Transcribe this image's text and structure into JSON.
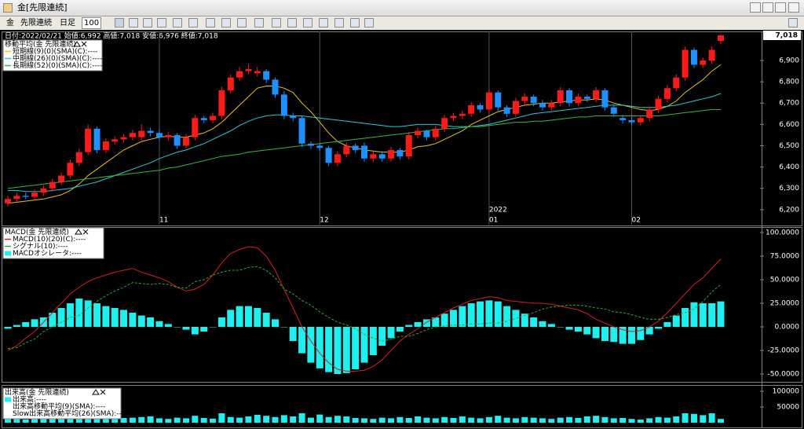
{
  "window": {
    "title": "金[先限連続]",
    "toolbar": {
      "symbol": "金",
      "contract": "先限連続",
      "period": "日足",
      "count": "100"
    }
  },
  "chart_data": [
    {
      "type": "candlestick",
      "info": "日付:2022/02/21 始値:6,992 高値:7,018 安値:6,976 終値:7,018",
      "legend_title": "移動平均(金 先限連続)",
      "categories": [
        null,
        null,
        null,
        null,
        null,
        null,
        null,
        null,
        null,
        null,
        null,
        null,
        null,
        null,
        null,
        null,
        null,
        "11",
        null,
        null,
        null,
        null,
        null,
        null,
        null,
        null,
        null,
        null,
        null,
        null,
        null,
        null,
        null,
        null,
        null,
        "12",
        null,
        null,
        null,
        null,
        null,
        null,
        null,
        null,
        null,
        null,
        null,
        null,
        null,
        null,
        null,
        null,
        null,
        null,
        "01",
        null,
        null,
        null,
        null,
        null,
        null,
        null,
        null,
        null,
        null,
        null,
        null,
        null,
        null,
        null,
        "02",
        null,
        null,
        null,
        null,
        null,
        null,
        null,
        null,
        null,
        null
      ],
      "year_label": "2022",
      "up_color": "#ff1a1a",
      "down_color": "#1e90ff",
      "open": [
        6230,
        6250,
        6265,
        6260,
        6280,
        6300,
        6330,
        6360,
        6420,
        6470,
        6580,
        6480,
        6520,
        6530,
        6540,
        6540,
        6570,
        6560,
        6540,
        6550,
        6500,
        6540,
        6630,
        6620,
        6640,
        6760,
        6820,
        6850,
        6840,
        6850,
        6810,
        6740,
        6640,
        6630,
        6510,
        6500,
        6490,
        6420,
        6460,
        6500,
        6500,
        6440,
        6460,
        6440,
        6480,
        6450,
        6550,
        6570,
        6540,
        6580,
        6630,
        6640,
        6650,
        6690,
        6670,
        6750,
        6680,
        6650,
        6710,
        6730,
        6700,
        6680,
        6700,
        6760,
        6700,
        6730,
        6720,
        6760,
        6680,
        6630,
        6620,
        6610,
        6630,
        6670,
        6720,
        6770,
        6820,
        6950,
        6880,
        6900,
        6992
      ],
      "high": [
        6265,
        6280,
        6280,
        6295,
        6315,
        6345,
        6375,
        6435,
        6485,
        6600,
        6590,
        6535,
        6545,
        6555,
        6575,
        6600,
        6585,
        6575,
        6565,
        6560,
        6555,
        6645,
        6640,
        6655,
        6775,
        6835,
        6870,
        6885,
        6870,
        6860,
        6820,
        6755,
        6655,
        6640,
        6520,
        6510,
        6500,
        6475,
        6515,
        6510,
        6515,
        6475,
        6475,
        6495,
        6490,
        6565,
        6585,
        6575,
        6595,
        6645,
        6655,
        6665,
        6705,
        6700,
        6765,
        6760,
        6690,
        6725,
        6745,
        6740,
        6715,
        6715,
        6775,
        6770,
        6745,
        6740,
        6775,
        6770,
        6690,
        6645,
        6635,
        6645,
        6685,
        6735,
        6785,
        6835,
        6965,
        6960,
        6915,
        6965,
        7018
      ],
      "low": [
        6215,
        6235,
        6250,
        6245,
        6265,
        6285,
        6315,
        6345,
        6405,
        6455,
        6465,
        6465,
        6505,
        6515,
        6525,
        6525,
        6545,
        6525,
        6525,
        6485,
        6485,
        6525,
        6605,
        6605,
        6625,
        6745,
        6805,
        6835,
        6825,
        6795,
        6725,
        6625,
        6615,
        6495,
        6485,
        6475,
        6405,
        6405,
        6445,
        6465,
        6425,
        6425,
        6425,
        6425,
        6435,
        6435,
        6535,
        6525,
        6525,
        6565,
        6615,
        6625,
        6635,
        6655,
        6655,
        6665,
        6635,
        6635,
        6695,
        6685,
        6665,
        6665,
        6685,
        6685,
        6685,
        6705,
        6705,
        6665,
        6635,
        6605,
        6595,
        6595,
        6615,
        6655,
        6705,
        6755,
        6805,
        6865,
        6865,
        6885,
        6976
      ],
      "close": [
        6250,
        6265,
        6260,
        6280,
        6300,
        6330,
        6360,
        6420,
        6470,
        6580,
        6480,
        6520,
        6530,
        6540,
        6560,
        6570,
        6560,
        6540,
        6550,
        6500,
        6540,
        6630,
        6620,
        6640,
        6760,
        6820,
        6850,
        6860,
        6850,
        6810,
        6740,
        6640,
        6630,
        6510,
        6500,
        6490,
        6420,
        6460,
        6500,
        6480,
        6440,
        6460,
        6440,
        6480,
        6450,
        6550,
        6570,
        6540,
        6580,
        6630,
        6640,
        6650,
        6690,
        6670,
        6750,
        6680,
        6650,
        6710,
        6730,
        6700,
        6680,
        6700,
        6760,
        6700,
        6730,
        6720,
        6760,
        6680,
        6650,
        6620,
        6610,
        6630,
        6670,
        6720,
        6770,
        6820,
        6950,
        6880,
        6900,
        6950,
        7018
      ],
      "series": [
        {
          "name": "短期線(9)(0)(SMA)(C):----",
          "color": "#e6c619",
          "values": [
            6230,
            6235,
            6240,
            6245,
            6250,
            6260,
            6270,
            6290,
            6320,
            6360,
            6390,
            6420,
            6450,
            6480,
            6500,
            6520,
            6530,
            6540,
            6545,
            6540,
            6540,
            6550,
            6560,
            6580,
            6610,
            6650,
            6690,
            6730,
            6770,
            6780,
            6780,
            6770,
            6750,
            6700,
            6660,
            6610,
            6560,
            6520,
            6500,
            6490,
            6480,
            6475,
            6470,
            6470,
            6470,
            6480,
            6495,
            6500,
            6510,
            6530,
            6550,
            6570,
            6600,
            6620,
            6640,
            6660,
            6670,
            6680,
            6690,
            6695,
            6700,
            6700,
            6705,
            6710,
            6715,
            6715,
            6720,
            6715,
            6700,
            6690,
            6680,
            6670,
            6665,
            6670,
            6685,
            6710,
            6750,
            6780,
            6810,
            6850,
            6880
          ]
        },
        {
          "name": "中期線(26)(0)(SMA)(C):----",
          "color": "#33c6d6",
          "values": [
            6290,
            6290,
            6285,
            6285,
            6285,
            6290,
            6295,
            6300,
            6310,
            6320,
            6330,
            6345,
            6360,
            6375,
            6390,
            6405,
            6420,
            6440,
            6455,
            6470,
            6480,
            6495,
            6510,
            6530,
            6550,
            6570,
            6595,
            6615,
            6630,
            6640,
            6645,
            6645,
            6640,
            6640,
            6635,
            6630,
            6625,
            6620,
            6615,
            6610,
            6605,
            6600,
            6595,
            6590,
            6590,
            6595,
            6600,
            6600,
            6600,
            6595,
            6590,
            6590,
            6590,
            6595,
            6600,
            6610,
            6620,
            6630,
            6640,
            6650,
            6655,
            6660,
            6665,
            6670,
            6675,
            6680,
            6685,
            6690,
            6690,
            6690,
            6685,
            6680,
            6680,
            6680,
            6685,
            6690,
            6700,
            6710,
            6720,
            6730,
            6745
          ]
        },
        {
          "name": "長期線(52)(0)(SMA)(C):----",
          "color": "#3cb53c",
          "values": [
            6300,
            6305,
            6310,
            6315,
            6320,
            6325,
            6330,
            6335,
            6340,
            6345,
            6350,
            6355,
            6360,
            6365,
            6370,
            6375,
            6380,
            6385,
            6395,
            6400,
            6410,
            6420,
            6430,
            6440,
            6450,
            6455,
            6460,
            6470,
            6475,
            6480,
            6485,
            6490,
            6495,
            6500,
            6505,
            6510,
            6515,
            6520,
            6525,
            6530,
            6535,
            6540,
            6545,
            6550,
            6555,
            6560,
            6565,
            6570,
            6575,
            6580,
            6580,
            6585,
            6590,
            6590,
            6595,
            6600,
            6605,
            6610,
            6610,
            6615,
            6615,
            6620,
            6625,
            6630,
            6635,
            6635,
            6640,
            6640,
            6640,
            6640,
            6640,
            6640,
            6640,
            6640,
            6645,
            6650,
            6655,
            6660,
            6665,
            6670,
            6670
          ]
        }
      ],
      "ylim": [
        6181,
        7029
      ],
      "yticks": [
        {
          "value": 6200,
          "label": "6,200"
        },
        {
          "value": 6300,
          "label": "6,300"
        },
        {
          "value": 6400,
          "label": "6,400"
        },
        {
          "value": 6500,
          "label": "6,500"
        },
        {
          "value": 6600,
          "label": "6,600"
        },
        {
          "value": 6700,
          "label": "6,700"
        },
        {
          "value": 6800,
          "label": "6,800"
        },
        {
          "value": 6900,
          "label": "6,900"
        }
      ],
      "last_label": {
        "value": 7018,
        "label": "7,018"
      }
    },
    {
      "type": "combo",
      "legend_title": "MACD(金 先限連続)",
      "series": [
        {
          "name": "MACD(10)(20)(C):----",
          "type": "line",
          "color": "#d42020",
          "values": [
            -25,
            -20,
            -12,
            -5,
            5,
            15,
            25,
            35,
            42,
            48,
            52,
            55,
            58,
            60,
            62,
            58,
            55,
            52,
            48,
            42,
            38,
            40,
            45,
            55,
            68,
            78,
            82,
            85,
            84,
            75,
            60,
            40,
            20,
            0,
            -15,
            -28,
            -38,
            -45,
            -47,
            -47,
            -46,
            -42,
            -35,
            -25,
            -15,
            -8,
            -2,
            5,
            10,
            15,
            20,
            24,
            28,
            30,
            32,
            31,
            28,
            27,
            26,
            25,
            25,
            24,
            22,
            20,
            18,
            14,
            8,
            4,
            0,
            -3,
            -5,
            -4,
            0,
            6,
            15,
            25,
            35,
            45,
            52,
            62,
            72
          ]
        },
        {
          "name": "シグナル(10):----",
          "type": "line",
          "dash": true,
          "color": "#2fa82f",
          "values": [
            -23,
            -22,
            -17,
            -13,
            -5,
            0,
            5,
            10,
            12,
            20,
            27,
            33,
            38,
            42,
            47,
            46,
            45,
            46,
            45,
            42,
            41,
            48,
            50,
            55,
            58,
            60,
            60,
            63,
            64,
            60,
            52,
            40,
            35,
            28,
            23,
            16,
            10,
            5,
            2,
            -2,
            -8,
            -12,
            -15,
            -13,
            -10,
            -10,
            -7,
            -3,
            0,
            1,
            2,
            2,
            3,
            3,
            4,
            4,
            6,
            9,
            12,
            15,
            19,
            21,
            22,
            23,
            23,
            22,
            20,
            19,
            16,
            15,
            13,
            10,
            8,
            8,
            10,
            13,
            15,
            19,
            27,
            37,
            45
          ]
        },
        {
          "name": "MACDオシレータ:----",
          "type": "bar",
          "color": "#1ef0f0",
          "values": [
            -2,
            2,
            5,
            8,
            10,
            15,
            20,
            25,
            30,
            28,
            25,
            22,
            20,
            18,
            15,
            12,
            10,
            6,
            3,
            0,
            -3,
            -8,
            -5,
            0,
            10,
            18,
            22,
            22,
            20,
            15,
            8,
            0,
            -15,
            -28,
            -38,
            -44,
            -48,
            -50,
            -49,
            -45,
            -38,
            -30,
            -20,
            -12,
            -5,
            2,
            5,
            8,
            10,
            14,
            18,
            22,
            25,
            27,
            28,
            27,
            22,
            18,
            14,
            10,
            6,
            3,
            0,
            -3,
            -5,
            -8,
            -12,
            -15,
            -16,
            -18,
            -18,
            -14,
            -8,
            -2,
            5,
            12,
            20,
            26,
            25,
            25,
            27
          ]
        }
      ],
      "ylim": [
        -55,
        103.3
      ],
      "yticks": [
        {
          "value": 100,
          "label": "100.0000"
        },
        {
          "value": 75,
          "label": "75.0000"
        },
        {
          "value": 50,
          "label": "50.0000"
        },
        {
          "value": 25,
          "label": "25.0000"
        },
        {
          "value": 0,
          "label": "0.0000"
        },
        {
          "value": -25,
          "label": "-25.0000"
        },
        {
          "value": -50,
          "label": "-50.0000"
        }
      ]
    },
    {
      "type": "bar",
      "legend_title": "出来高(金 先限連続)",
      "series": [
        {
          "name": "出来高:----",
          "type": "bar",
          "color": "#1ef0f0",
          "values": [
            12000,
            15000,
            10000,
            14000,
            18000,
            16000,
            20000,
            15000,
            18000,
            22000,
            16000,
            14000,
            12000,
            15000,
            16000,
            18000,
            20000,
            14000,
            12000,
            16000,
            14000,
            22000,
            15000,
            13000,
            30000,
            18000,
            16000,
            20000,
            25000,
            22000,
            18000,
            24000,
            20000,
            30000,
            16000,
            26000,
            18000,
            22000,
            20000,
            15000,
            14000,
            12000,
            16000,
            14000,
            18000,
            15000,
            20000,
            16000,
            14000,
            18000,
            15000,
            20000,
            16000,
            14000,
            18000,
            22000,
            16000,
            14000,
            18000,
            16000,
            14000,
            12000,
            16000,
            18000,
            15000,
            20000,
            22000,
            18000,
            14000,
            15000,
            12000,
            10000,
            14000,
            18000,
            16000,
            20000,
            30000,
            28000,
            24000,
            30000,
            12000
          ]
        }
      ],
      "legend_items": [
        "出来高移動平均(9)(SMA):----",
        "Slow出来高移動平均(26)(SMA):----"
      ],
      "ylim": [
        -5000,
        110000
      ],
      "yticks": [
        50000,
        100000
      ]
    }
  ]
}
